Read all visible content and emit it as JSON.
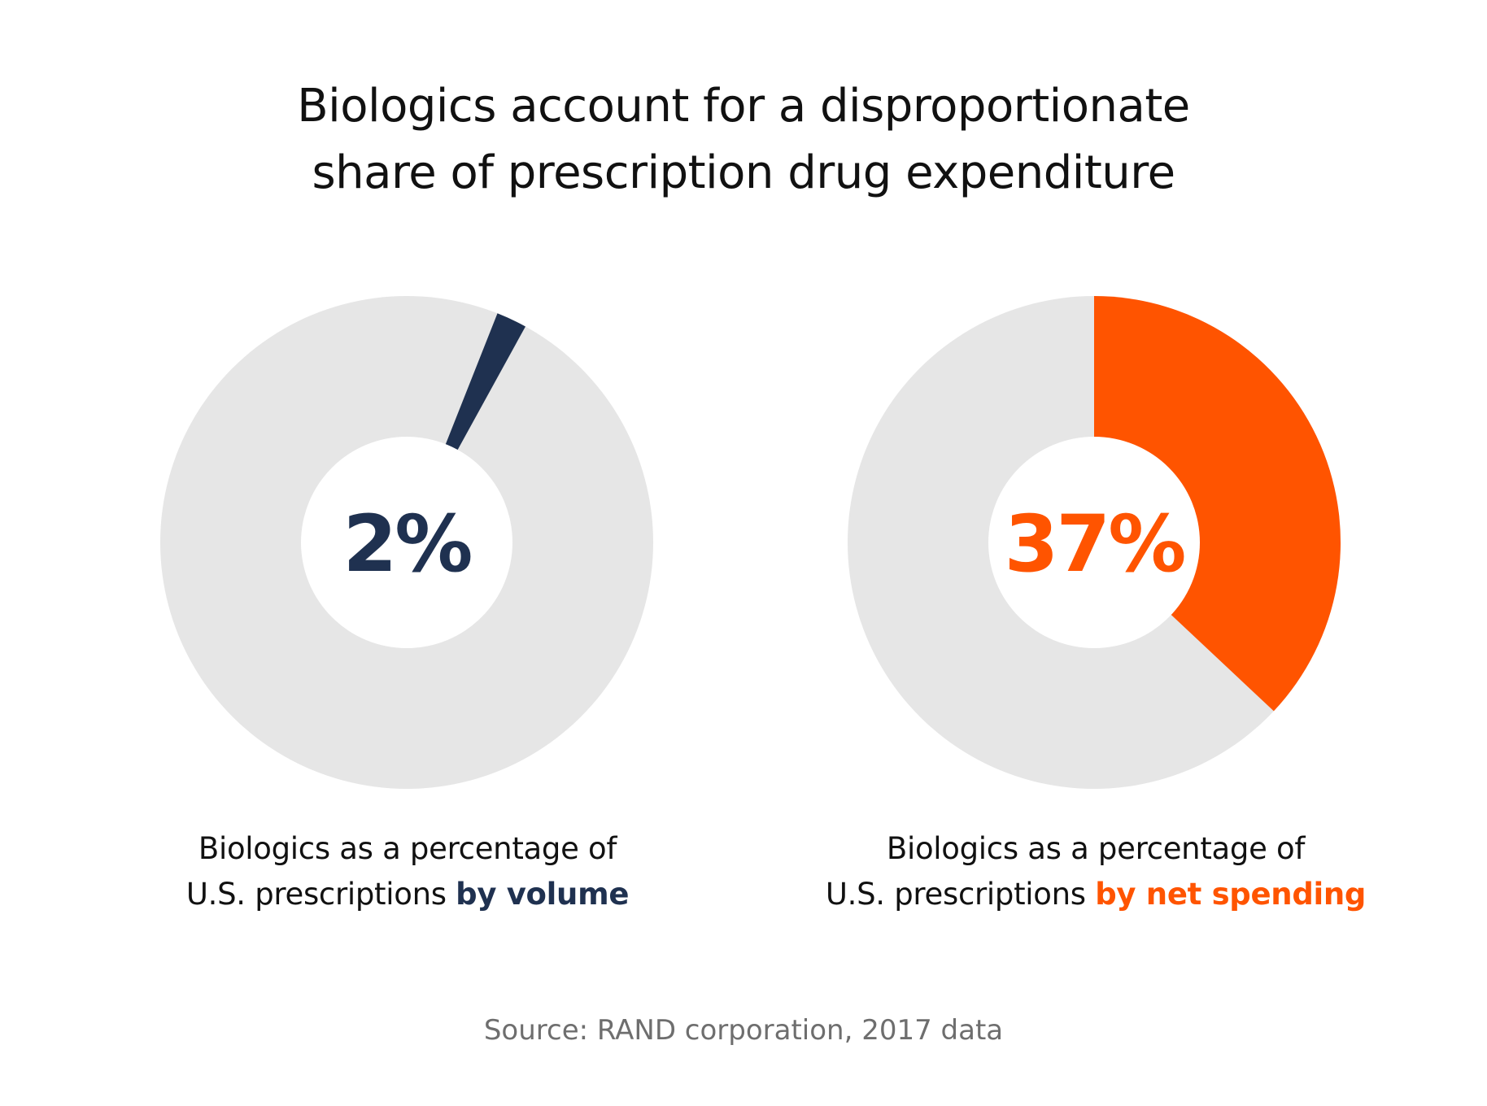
{
  "title_lines": [
    "Biologics account for a disproportionate",
    "share of prescription drug expenditure"
  ],
  "colors": {
    "remainder": "#e6e6e6",
    "volume_accent": "#1f3150",
    "spending_accent": "#ff5400",
    "source_text": "#6e6e6e"
  },
  "chart_data": [
    {
      "type": "pie",
      "variant": "donut",
      "center_label": "2%",
      "slices": [
        {
          "value": 2,
          "color": "#1f3150"
        },
        {
          "value": 98,
          "color": "#e6e6e6"
        }
      ],
      "caption_line1": "Biologics as a percentage of",
      "caption_line2_prefix": "U.S. prescriptions ",
      "caption_line2_highlight": "by volume",
      "highlight_color": "#1f3150"
    },
    {
      "type": "pie",
      "variant": "donut",
      "center_label": "37%",
      "slices": [
        {
          "value": 37,
          "color": "#ff5400"
        },
        {
          "value": 63,
          "color": "#e6e6e6"
        }
      ],
      "caption_line1": "Biologics as a percentage of",
      "caption_line2_prefix": "U.S. prescriptions ",
      "caption_line2_highlight": "by net spending",
      "highlight_color": "#ff5400"
    }
  ],
  "source": "Source: RAND corporation, 2017 data"
}
